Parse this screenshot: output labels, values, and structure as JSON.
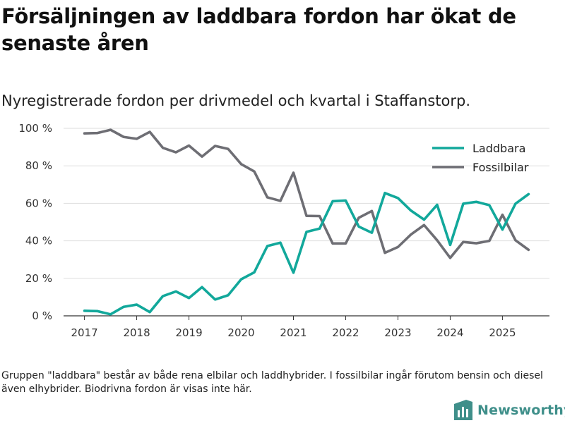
{
  "header": {
    "title": "Försäljningen av laddbara fordon har ökat de senaste åren",
    "subtitle": "Nyregistrerade fordon per drivmedel och kvartal i Staffanstorp."
  },
  "footer": {
    "note": "Gruppen \"laddbara\" består av både rena elbilar och laddhybrider. I fossilbilar ingår förutom bensin och diesel även elhybrider. Biodrivna fordon är visas inte här.",
    "logo_text": "Newsworthy",
    "logo_icon": "newsworthy-bar-chart-icon"
  },
  "colors": {
    "laddbara": "#12a89b",
    "fossilbilar": "#6e6e74",
    "grid": "#dddddd",
    "axis": "#333333",
    "logo": "#3f8f8a"
  },
  "chart_data": {
    "type": "line",
    "title": "Nyregistrerade fordon per drivmedel och kvartal i Staffanstorp.",
    "xlabel": "",
    "ylabel": "",
    "ylim": [
      0,
      100
    ],
    "xlim": [
      2016.6,
      2025.9
    ],
    "grid": true,
    "legend_position": "top-right",
    "x_ticks": [
      2017,
      2018,
      2019,
      2020,
      2021,
      2022,
      2023,
      2024,
      2025
    ],
    "x_tick_labels": [
      "2017",
      "2018",
      "2019",
      "2020",
      "2021",
      "2022",
      "2023",
      "2024",
      "2025"
    ],
    "y_ticks": [
      0,
      20,
      40,
      60,
      80,
      100
    ],
    "y_tick_labels": [
      "0 %",
      "20 %",
      "40 %",
      "60 %",
      "80 %",
      "100 %"
    ],
    "x": [
      2017.0,
      2017.25,
      2017.5,
      2017.75,
      2018.0,
      2018.25,
      2018.5,
      2018.75,
      2019.0,
      2019.25,
      2019.5,
      2019.75,
      2020.0,
      2020.25,
      2020.5,
      2020.75,
      2021.0,
      2021.25,
      2021.5,
      2021.75,
      2022.0,
      2022.25,
      2022.5,
      2022.75,
      2023.0,
      2023.25,
      2023.5,
      2023.75,
      2024.0,
      2024.25,
      2024.5,
      2024.75,
      2025.0,
      2025.25,
      2025.5
    ],
    "series": [
      {
        "name": "Laddbara",
        "values": [
          2.7,
          2.5,
          0.8,
          4.8,
          6,
          2,
          10.5,
          13,
          9.5,
          15.3,
          8.7,
          11,
          19.5,
          23.2,
          37.2,
          39,
          23,
          44.8,
          46.5,
          61.1,
          61.5,
          47.6,
          44.3,
          65.5,
          62.8,
          56.1,
          51.3,
          59.2,
          37.8,
          59.8,
          60.8,
          59,
          46,
          59.8,
          64.9
        ]
      },
      {
        "name": "Fossilbilar",
        "values": [
          97.3,
          97.5,
          99.2,
          95.4,
          94.4,
          98.1,
          89.6,
          87.2,
          90.8,
          84.9,
          90.6,
          89,
          80.9,
          77,
          63.2,
          61.3,
          76.3,
          53.3,
          53.2,
          38.6,
          38.6,
          52.3,
          55.9,
          33.6,
          36.7,
          43.4,
          48.4,
          40.3,
          30.9,
          39.4,
          38.7,
          40,
          53.9,
          40.3,
          35.2
        ]
      }
    ]
  }
}
